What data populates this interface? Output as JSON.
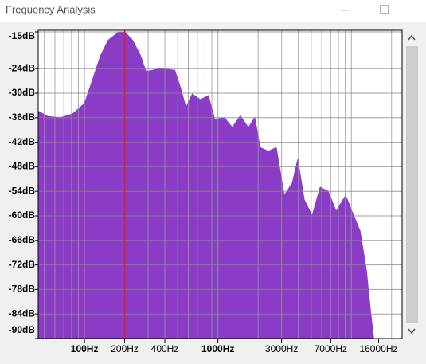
{
  "window_title": "Frequency Analysis",
  "chart_data": {
    "type": "area",
    "log_x": true,
    "color": "#8a3cc6",
    "grid": true,
    "x": [
      45.6,
      53.3,
      66,
      82,
      100,
      115,
      132,
      151,
      181,
      200,
      229,
      263,
      289,
      323,
      370,
      475,
      523,
      576,
      643,
      738,
      848,
      946,
      1117,
      1282,
      1471,
      1689,
      1886,
      2076,
      2383,
      2735,
      3139,
      3605,
      3965,
      4429,
      5084,
      5837,
      6700,
      7692,
      9060,
      10120,
      11620,
      12980,
      13900,
      14700
    ],
    "values": [
      -34.5,
      -35.7,
      -36,
      -35,
      -32.5,
      -26.7,
      -20.8,
      -17,
      -15,
      -15,
      -17,
      -20.8,
      -24.7,
      -24.4,
      -24,
      -24.4,
      -28.6,
      -33.5,
      -30.2,
      -31.6,
      -30.6,
      -36.4,
      -36,
      -38.4,
      -35.5,
      -38.4,
      -36,
      -43.3,
      -44.2,
      -43.3,
      -55,
      -52,
      -46.2,
      -56,
      -60,
      -53,
      -54,
      -58.9,
      -55,
      -59,
      -63.7,
      -73.5,
      -83.2,
      -90
    ],
    "xlim": [
      45,
      24000
    ],
    "ylim": [
      -90,
      -15
    ],
    "xticks": [
      {
        "value": 100,
        "label": "100Hz"
      },
      {
        "value": 200,
        "label": "200Hz"
      },
      {
        "value": 400,
        "label": "400Hz"
      },
      {
        "value": 1000,
        "label": "1000Hz"
      },
      {
        "value": 3000,
        "label": "3000Hz"
      },
      {
        "value": 7000,
        "label": "7000Hz"
      },
      {
        "value": 16000,
        "label": "16000Hz"
      }
    ],
    "xgrid": [
      50,
      60,
      70,
      80,
      90,
      100,
      200,
      300,
      400,
      500,
      600,
      700,
      800,
      900,
      1000,
      2000,
      3000,
      4000,
      5000,
      6000,
      7000,
      8000,
      9000,
      10000,
      20000
    ],
    "yticks": [
      {
        "value": -15,
        "label": "-15dB"
      },
      {
        "value": -24,
        "label": "-24dB"
      },
      {
        "value": -30,
        "label": "-30dB"
      },
      {
        "value": -36,
        "label": "-36dB"
      },
      {
        "value": -42,
        "label": "-42dB"
      },
      {
        "value": -48,
        "label": "-48dB"
      },
      {
        "value": -54,
        "label": "-54dB"
      },
      {
        "value": -60,
        "label": "-60dB"
      },
      {
        "value": -66,
        "label": "-66dB"
      },
      {
        "value": -72,
        "label": "-72dB"
      },
      {
        "value": -78,
        "label": "-78dB"
      },
      {
        "value": -84,
        "label": "-84dB"
      },
      {
        "value": -90,
        "label": "-90dB"
      }
    ],
    "cursor_x": 200,
    "cursor_color": "#e02020"
  }
}
